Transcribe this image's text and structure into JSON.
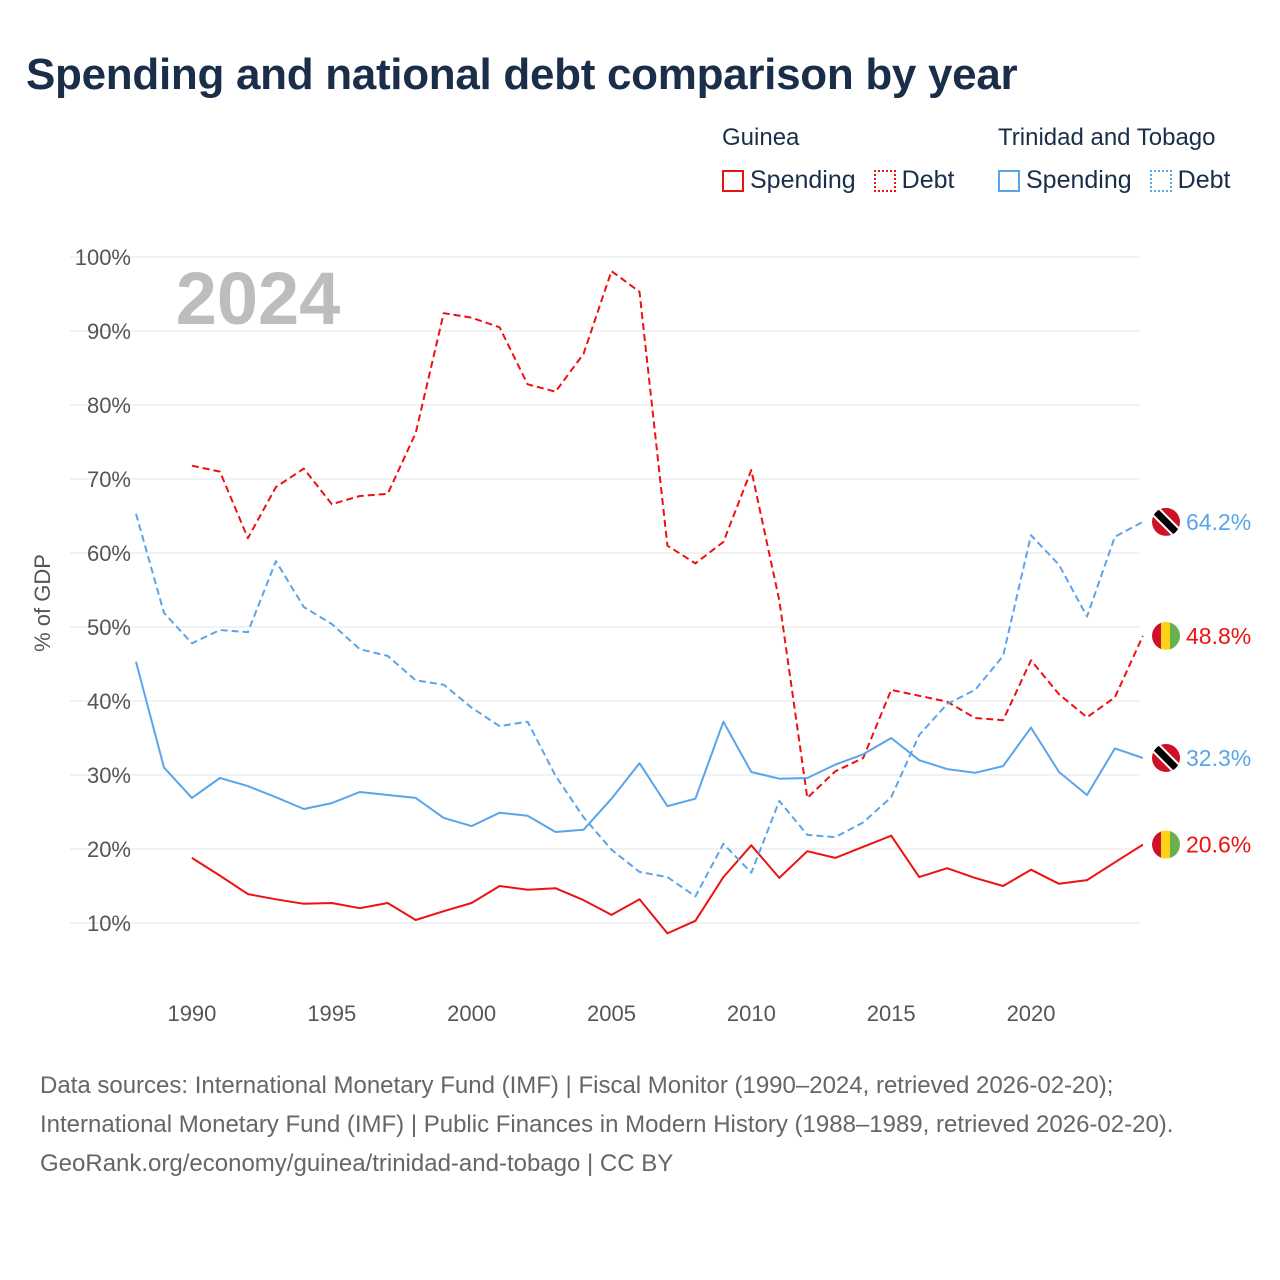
{
  "title": "Spending and national debt comparison by year",
  "legend": {
    "groups": [
      {
        "name": "Guinea",
        "items": [
          "Spending",
          "Debt"
        ],
        "color": "#ee1111"
      },
      {
        "name": "Trinidad and Tobago",
        "items": [
          "Spending",
          "Debt"
        ],
        "color": "#5aa5ea"
      }
    ]
  },
  "year_watermark": "2024",
  "footer": {
    "sources": "Data sources: International Monetary Fund (IMF) | Fiscal Monitor (1990–2024, retrieved 2026-02-20); International Monetary Fund (IMF) | Public Finances in Modern History (1988–1989, retrieved 2026-02-20).",
    "credit": "GeoRank.org/economy/guinea/trinidad-and-tobago | CC BY"
  },
  "chart_data": {
    "type": "line",
    "title": "Spending and national debt comparison by year",
    "xlabel": "",
    "ylabel": "% of GDP",
    "xlim": [
      1988,
      2024
    ],
    "ylim": [
      0,
      100
    ],
    "x_ticks": [
      1990,
      1995,
      2000,
      2005,
      2010,
      2015,
      2020
    ],
    "y_ticks": [
      10,
      20,
      30,
      40,
      50,
      60,
      70,
      80,
      90,
      100
    ],
    "y_tick_labels": [
      "10%",
      "20%",
      "30%",
      "40%",
      "50%",
      "60%",
      "70%",
      "80%",
      "90%",
      "100%"
    ],
    "grid": true,
    "legend_position": "top-right",
    "series": [
      {
        "name": "Guinea Spending",
        "country": "guinea",
        "color": "#ee1111",
        "dash": false,
        "start": 1990,
        "values": [
          18.8,
          16.4,
          13.9,
          13.2,
          12.6,
          12.7,
          12.0,
          12.7,
          10.4,
          11.6,
          12.7,
          15.0,
          14.5,
          14.7,
          13.1,
          11.1,
          13.2,
          8.6,
          10.3,
          16.2,
          20.5,
          16.1,
          19.7,
          18.8,
          20.3,
          21.8,
          16.2,
          17.4,
          16.1,
          15.0,
          17.2,
          15.3,
          15.8,
          18.2,
          20.6
        ],
        "end_label": "20.6%"
      },
      {
        "name": "Guinea Debt",
        "country": "guinea",
        "color": "#ee1111",
        "dash": true,
        "start": 1990,
        "values": [
          71.8,
          71.0,
          62.0,
          68.9,
          71.4,
          66.6,
          67.7,
          68.0,
          76.2,
          92.4,
          91.8,
          90.5,
          82.8,
          81.8,
          86.9,
          98.1,
          95.3,
          61.0,
          58.6,
          61.5,
          71.2,
          53.6,
          26.9,
          30.5,
          32.3,
          41.5,
          40.7,
          39.9,
          37.7,
          37.4,
          45.5,
          40.9,
          37.8,
          40.5,
          48.8
        ],
        "end_label": "48.8%"
      },
      {
        "name": "Trinidad and Tobago Spending",
        "country": "tt",
        "color": "#5aa5ea",
        "dash": false,
        "start": 1988,
        "values": [
          45.3,
          31.0,
          26.9,
          29.6,
          28.5,
          27.0,
          25.4,
          26.2,
          27.7,
          27.3,
          26.9,
          24.2,
          23.1,
          24.9,
          24.5,
          22.3,
          22.6,
          26.8,
          31.6,
          25.8,
          26.8,
          37.2,
          30.4,
          29.5,
          29.6,
          31.4,
          32.8,
          35.0,
          32.0,
          30.8,
          30.3,
          31.2,
          36.4,
          30.4,
          27.3,
          33.6,
          32.3
        ],
        "end_label": "32.3%"
      },
      {
        "name": "Trinidad and Tobago Debt",
        "country": "tt",
        "color": "#5aa5ea",
        "dash": true,
        "start": 1988,
        "values": [
          65.3,
          51.9,
          47.8,
          49.6,
          49.3,
          58.9,
          52.7,
          50.4,
          47.0,
          46.1,
          42.8,
          42.2,
          39.1,
          36.6,
          37.2,
          29.9,
          24.3,
          19.9,
          16.9,
          16.2,
          13.6,
          20.7,
          16.8,
          26.5,
          21.9,
          21.6,
          23.6,
          27.0,
          35.4,
          39.6,
          41.5,
          46.1,
          62.4,
          58.4,
          51.4,
          62.2,
          64.2
        ],
        "end_label": "64.2%"
      }
    ]
  }
}
